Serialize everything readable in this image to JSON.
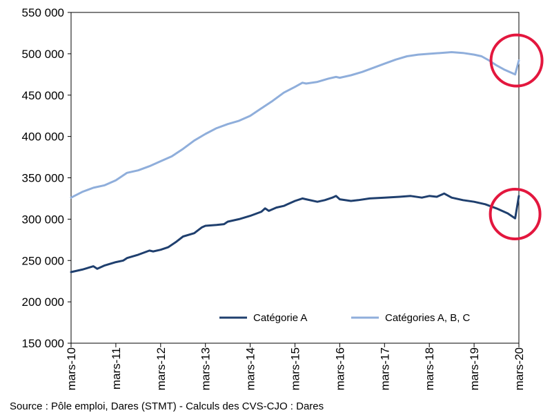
{
  "chart_data": {
    "type": "line",
    "title": "",
    "xlabel": "",
    "ylabel": "",
    "ylim": [
      150000,
      550000
    ],
    "yticks": [
      150000,
      200000,
      250000,
      300000,
      350000,
      400000,
      450000,
      500000,
      550000
    ],
    "ytick_labels": [
      "150 000",
      "200 000",
      "250 000",
      "300 000",
      "350 000",
      "400 000",
      "450 000",
      "500 000",
      "550 000"
    ],
    "xlim": [
      0,
      120
    ],
    "xtick_positions": [
      0,
      12,
      24,
      36,
      48,
      60,
      72,
      84,
      96,
      108,
      120
    ],
    "xtick_labels": [
      "mars-10",
      "mars-11",
      "mars-12",
      "mars-13",
      "mars-14",
      "mars-15",
      "mars-16",
      "mars-17",
      "mars-18",
      "mars-19",
      "mars-20"
    ],
    "legend_position": "lower-center",
    "grid": false,
    "series": [
      {
        "name": "Catégorie A",
        "color": "#1f3f6e",
        "x": [
          0,
          3,
          6,
          7,
          9,
          12,
          14,
          15,
          18,
          21,
          22,
          24,
          26,
          28,
          30,
          33,
          35,
          36,
          39,
          41,
          42,
          45,
          48,
          51,
          52,
          53,
          55,
          57,
          58,
          60,
          62,
          63,
          66,
          68,
          70,
          71,
          72,
          75,
          77,
          80,
          84,
          88,
          91,
          94,
          96,
          98,
          100,
          102,
          105,
          108,
          111,
          114,
          117,
          119,
          120
        ],
        "values": [
          236000,
          239000,
          243000,
          240000,
          244000,
          248000,
          250000,
          253000,
          257000,
          262000,
          261000,
          263000,
          266000,
          272000,
          279000,
          283000,
          290000,
          292000,
          293000,
          294000,
          297000,
          300000,
          304000,
          309000,
          313000,
          310000,
          314000,
          316000,
          318000,
          322000,
          325000,
          324000,
          321000,
          323000,
          326000,
          328000,
          324000,
          322000,
          323000,
          325000,
          326000,
          327000,
          328000,
          326000,
          328000,
          327000,
          331000,
          326000,
          323000,
          321000,
          318000,
          313000,
          307000,
          301000,
          328000
        ]
      },
      {
        "name": "Catégories A, B, C",
        "color": "#8faedb",
        "x": [
          0,
          3,
          6,
          9,
          12,
          14,
          15,
          18,
          21,
          24,
          27,
          30,
          33,
          36,
          39,
          42,
          45,
          48,
          51,
          54,
          57,
          60,
          62,
          63,
          66,
          69,
          71,
          72,
          75,
          78,
          81,
          84,
          87,
          90,
          93,
          96,
          99,
          102,
          105,
          108,
          110,
          112,
          114,
          116,
          118,
          119,
          120
        ],
        "values": [
          326000,
          333000,
          338000,
          341000,
          347000,
          353000,
          356000,
          359000,
          364000,
          370000,
          376000,
          385000,
          395000,
          403000,
          410000,
          415000,
          419000,
          425000,
          434000,
          443000,
          453000,
          460000,
          465000,
          464000,
          466000,
          470000,
          472000,
          471000,
          474000,
          478000,
          483000,
          488000,
          493000,
          497000,
          499000,
          500000,
          501000,
          502000,
          501000,
          499000,
          497000,
          492000,
          486000,
          481000,
          477000,
          475000,
          492000
        ]
      }
    ],
    "annotations": [
      {
        "type": "circle",
        "color": "#e3173e",
        "label": "end of series A,B,C highlighted"
      },
      {
        "type": "circle",
        "color": "#e3173e",
        "label": "end of series A highlighted"
      }
    ]
  },
  "source": "Source : Pôle emploi, Dares (STMT) - Calculs des CVS-CJO : Dares"
}
